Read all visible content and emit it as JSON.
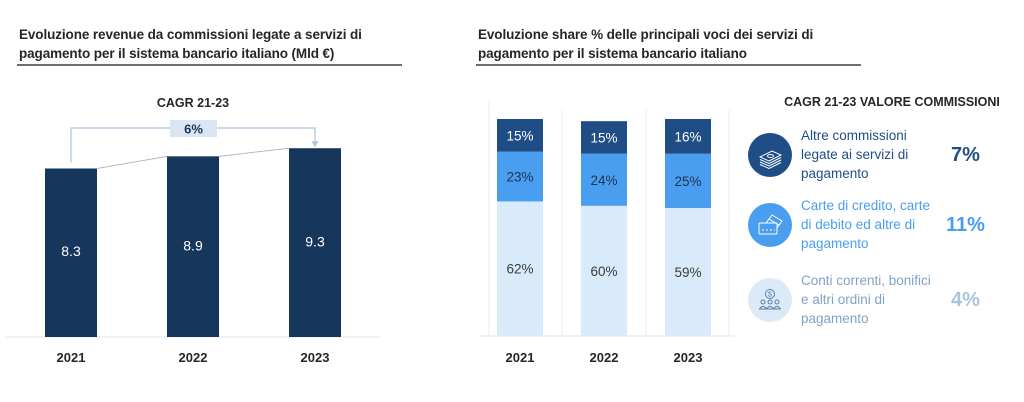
{
  "colors": {
    "navy": "#16365c",
    "dark_blue": "#1f4e87",
    "mid_blue": "#4a9ef0",
    "light_blue": "#d9ebfb",
    "cagr_box": "#dce6f2",
    "connector": "#a9c4de",
    "label_light": "#9dbbd6"
  },
  "chart_data": [
    {
      "type": "bar",
      "title": "Evoluzione revenue da commissioni legate a servizi di pagamento per il sistema bancario italiano (Mld €)",
      "xlabel": "",
      "ylabel": "",
      "categories": [
        "2021",
        "2022",
        "2023"
      ],
      "values": [
        8.3,
        8.9,
        9.3
      ],
      "value_labels": [
        "8.3",
        "8.9",
        "9.3"
      ],
      "ylim": [
        0,
        10
      ],
      "grid": false,
      "annotation": {
        "heading": "CAGR 21-23",
        "value": "6%",
        "from": "2021",
        "to": "2023"
      }
    },
    {
      "type": "bar",
      "stacked": true,
      "percent": true,
      "title": "Evoluzione share % delle principali voci dei servizi di pagamento per il sistema bancario italiano",
      "categories": [
        "2021",
        "2022",
        "2023"
      ],
      "series": [
        {
          "name": "Conti correnti, bonifici e altri ordini di pagamento",
          "values": [
            62,
            60,
            59
          ],
          "labels": [
            "62%",
            "60%",
            "59%"
          ]
        },
        {
          "name": "Carte di credito, carte di debito ed altre di pagamento",
          "values": [
            23,
            24,
            25
          ],
          "labels": [
            "23%",
            "24%",
            "25%"
          ]
        },
        {
          "name": "Altre commissioni legate ai servizi di pagamento",
          "values": [
            15,
            15,
            16
          ],
          "labels": [
            "15%",
            "15%",
            "16%"
          ]
        }
      ],
      "ylim": [
        0,
        100
      ],
      "grid": false,
      "legend": "right"
    }
  ],
  "side_panel": {
    "title": "CAGR 21-23 VALORE COMMISSIONI",
    "items": [
      {
        "icon": "banknotes-icon",
        "label": "Altre commissioni legate ai servizi di pagamento",
        "value": "7%"
      },
      {
        "icon": "credit-card-icon",
        "label": "Carte di credito, carte di debito ed altre di pagamento",
        "value": "11%"
      },
      {
        "icon": "people-dollar-icon",
        "label": "Conti correnti, bonifici e altri ordini di pagamento",
        "value": "4%"
      }
    ]
  }
}
